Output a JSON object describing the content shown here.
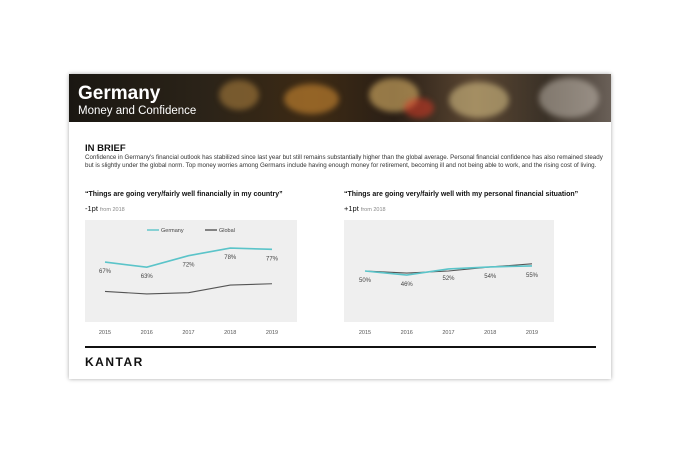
{
  "banner": {
    "title": "Germany",
    "subtitle": "Money and Confidence"
  },
  "brief": {
    "heading": "IN BRIEF",
    "text": "Confidence in Germany's financial outlook has stabilized since last year but still remains substantially higher than the global average. Personal financial confidence has also remained steady but is slightly under the global norm. Top money worries among Germans include having enough money for retirement, becoming ill and not being able to work, and the rising cost of living."
  },
  "footer": {
    "logo": "KANTAR"
  },
  "colors": {
    "germany": "#5bc4c9",
    "global": "#555555",
    "plot_bg": "#efefef"
  },
  "chart_data": [
    {
      "type": "line",
      "title": "“Things are going very/fairly well financially in my country”",
      "delta": "-1pt",
      "delta_from": "from 2018",
      "x": [
        "2015",
        "2016",
        "2017",
        "2018",
        "2019"
      ],
      "legend_position": "top",
      "series": [
        {
          "name": "Germany",
          "values": [
            67,
            63,
            72,
            78,
            77
          ],
          "labels": [
            "67%",
            "63%",
            "72%",
            "78%",
            "77%"
          ]
        },
        {
          "name": "Global",
          "values": [
            44,
            42,
            43,
            49,
            50
          ]
        }
      ],
      "ylim": [
        20,
        100
      ]
    },
    {
      "type": "line",
      "title": "“Things are going very/fairly well with my personal financial situation”",
      "delta": "+1pt",
      "delta_from": "from 2018",
      "x": [
        "2015",
        "2016",
        "2017",
        "2018",
        "2019"
      ],
      "series": [
        {
          "values": [
            50,
            46,
            52,
            54,
            55
          ],
          "labels": [
            "50%",
            "46%",
            "52%",
            "54%",
            "55%"
          ]
        },
        {
          "values": [
            50,
            48,
            50,
            54,
            57
          ]
        }
      ],
      "ylim": [
        0,
        100
      ]
    }
  ]
}
